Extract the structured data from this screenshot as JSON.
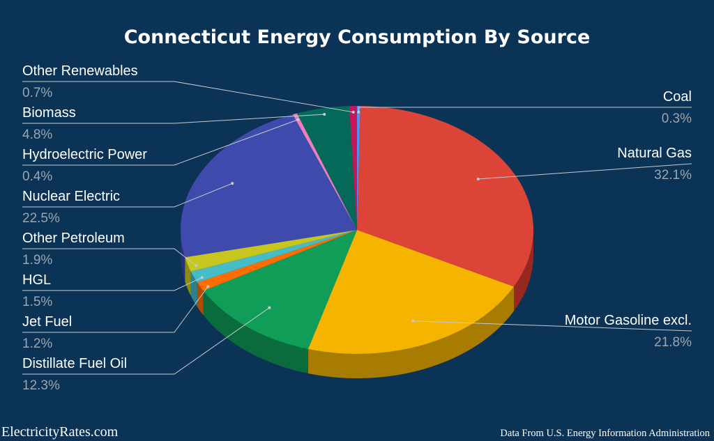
{
  "footer": {
    "site": "ElectricityRates.com",
    "source_note": "Data From U.S. Energy Information Administration"
  },
  "chart_data": {
    "type": "pie",
    "title": "Connecticut Energy Consumption By Source",
    "slices": [
      {
        "label": "Coal",
        "value": 0.3,
        "display": "0.3%",
        "color": "#4f8ff7",
        "side_color": "#3561a7"
      },
      {
        "label": "Natural Gas",
        "value": 32.1,
        "display": "32.1%",
        "color": "#dc4437",
        "side_color": "#97281f"
      },
      {
        "label": "Motor Gasoline excl.",
        "value": 21.8,
        "display": "21.8%",
        "color": "#f4b400",
        "side_color": "#a87c00"
      },
      {
        "label": "Distillate Fuel Oil",
        "value": 12.3,
        "display": "12.3%",
        "color": "#0f9d58",
        "side_color": "#0a6b3c"
      },
      {
        "label": "Jet Fuel",
        "value": 1.2,
        "display": "1.2%",
        "color": "#ff6d00",
        "side_color": "#b24b00"
      },
      {
        "label": "HGL",
        "value": 1.5,
        "display": "1.5%",
        "color": "#46bdc6",
        "side_color": "#2f8088"
      },
      {
        "label": "Other Petroleum",
        "value": 1.9,
        "display": "1.9%",
        "color": "#c6c61f",
        "side_color": "#8c8c10"
      },
      {
        "label": "Nuclear Electric",
        "value": 22.5,
        "display": "22.5%",
        "color": "#3f4aad",
        "side_color": "#283078"
      },
      {
        "label": "Hydroelectric Power",
        "value": 0.4,
        "display": "0.4%",
        "color": "#ec7ec0",
        "side_color": "#a5548a"
      },
      {
        "label": "Biomass",
        "value": 4.8,
        "display": "4.8%",
        "color": "#05695a",
        "side_color": "#04473d"
      },
      {
        "label": "Other Renewables",
        "value": 0.7,
        "display": "0.7%",
        "color": "#c2185b",
        "side_color": "#83103d"
      }
    ],
    "legend": "labels-with-leaders"
  }
}
